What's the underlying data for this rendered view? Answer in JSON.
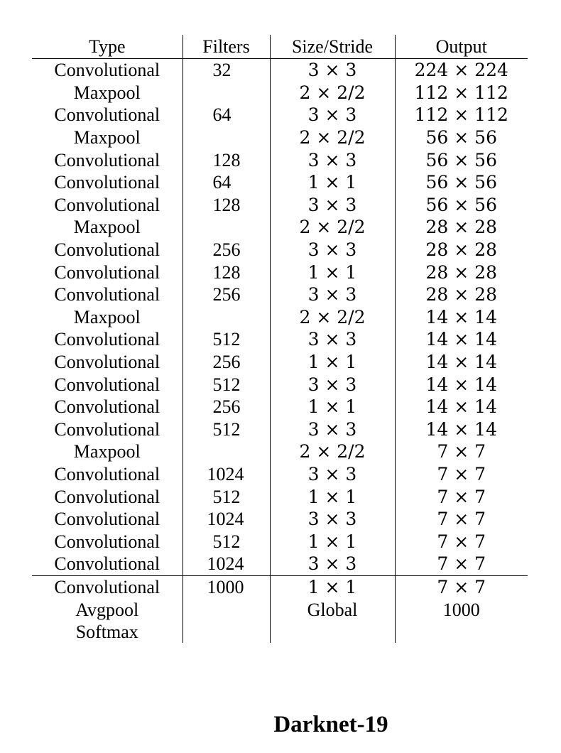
{
  "table": {
    "headers": {
      "type": "Type",
      "filters": "Filters",
      "size": "Size/Stride",
      "output": "Output"
    },
    "rows": [
      {
        "type": "Convolutional",
        "filters": "32",
        "size": "3 × 3",
        "output": "224 × 224"
      },
      {
        "type": "Maxpool",
        "filters": "",
        "size": "2 × 2/2",
        "output": "112 × 112"
      },
      {
        "type": "Convolutional",
        "filters": "64",
        "size": "3 × 3",
        "output": "112 × 112"
      },
      {
        "type": "Maxpool",
        "filters": "",
        "size": "2 × 2/2",
        "output": "56 × 56"
      },
      {
        "type": "Convolutional",
        "filters": "128",
        "size": "3 × 3",
        "output": "56 × 56"
      },
      {
        "type": "Convolutional",
        "filters": "64",
        "size": "1 × 1",
        "output": "56 × 56"
      },
      {
        "type": "Convolutional",
        "filters": "128",
        "size": "3 × 3",
        "output": "56 × 56"
      },
      {
        "type": "Maxpool",
        "filters": "",
        "size": "2 × 2/2",
        "output": "28 × 28"
      },
      {
        "type": "Convolutional",
        "filters": "256",
        "size": "3 × 3",
        "output": "28 × 28"
      },
      {
        "type": "Convolutional",
        "filters": "128",
        "size": "1 × 1",
        "output": "28 × 28"
      },
      {
        "type": "Convolutional",
        "filters": "256",
        "size": "3 × 3",
        "output": "28 × 28"
      },
      {
        "type": "Maxpool",
        "filters": "",
        "size": "2 × 2/2",
        "output": "14 × 14"
      },
      {
        "type": "Convolutional",
        "filters": "512",
        "size": "3 × 3",
        "output": "14 × 14"
      },
      {
        "type": "Convolutional",
        "filters": "256",
        "size": "1 × 1",
        "output": "14 × 14"
      },
      {
        "type": "Convolutional",
        "filters": "512",
        "size": "3 × 3",
        "output": "14 × 14"
      },
      {
        "type": "Convolutional",
        "filters": "256",
        "size": "1 × 1",
        "output": "14 × 14"
      },
      {
        "type": "Convolutional",
        "filters": "512",
        "size": "3 × 3",
        "output": "14 × 14"
      },
      {
        "type": "Maxpool",
        "filters": "",
        "size": "2 × 2/2",
        "output": "7 × 7"
      },
      {
        "type": "Convolutional",
        "filters": "1024",
        "size": "3 × 3",
        "output": "7 × 7"
      },
      {
        "type": "Convolutional",
        "filters": "512",
        "size": "1 × 1",
        "output": "7 × 7"
      },
      {
        "type": "Convolutional",
        "filters": "1024",
        "size": "3 × 3",
        "output": "7 × 7"
      },
      {
        "type": "Convolutional",
        "filters": "512",
        "size": "1 × 1",
        "output": "7 × 7"
      },
      {
        "type": "Convolutional",
        "filters": "1024",
        "size": "3 × 3",
        "output": "7 × 7"
      }
    ],
    "classifier_rows": [
      {
        "type": "Convolutional",
        "filters": "1000",
        "size": "1 × 1",
        "output": "7 × 7"
      },
      {
        "type": "Avgpool",
        "filters": "",
        "size": "Global",
        "output": "1000"
      },
      {
        "type": "Softmax",
        "filters": "",
        "size": "",
        "output": ""
      }
    ]
  },
  "caption": "Darknet-19"
}
